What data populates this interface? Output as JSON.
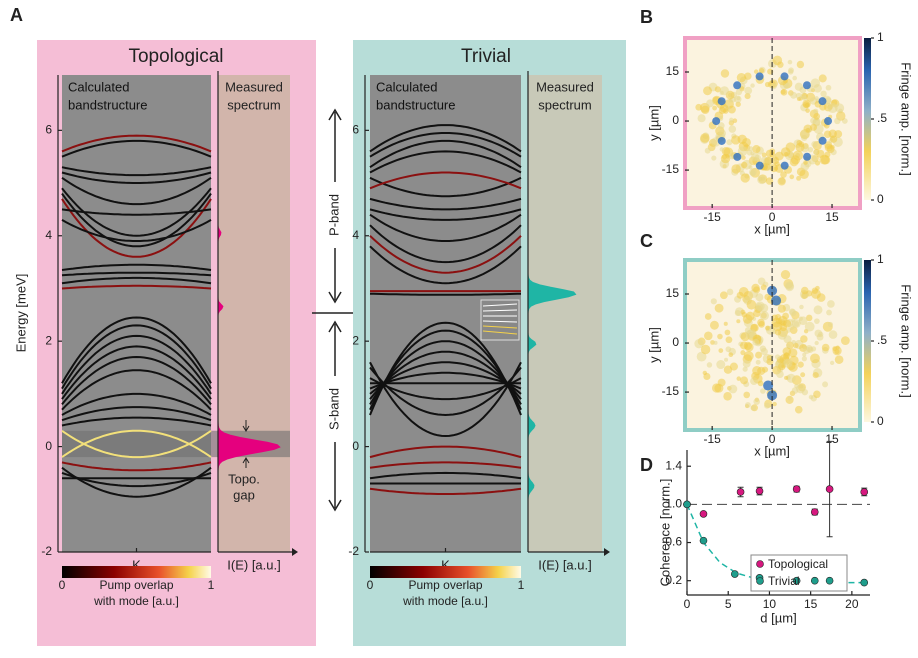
{
  "panel_labels": {
    "a": "A",
    "b": "B",
    "c": "C",
    "d": "D"
  },
  "energy_axis": {
    "label": "Energy [meV]",
    "ylim": [
      -2,
      7.05
    ],
    "yticks": [
      -2,
      0,
      2,
      4,
      6
    ]
  },
  "band_labels": {
    "p": "P-band",
    "s": "S-band"
  },
  "band_panels": [
    {
      "title": "Topological",
      "band_label": [
        "Calculated",
        "bandstructure"
      ],
      "spectrum_label": [
        "Measured",
        "spectrum"
      ],
      "x_label": "K",
      "spectrum_x_label": "I(E) [a.u.]",
      "colorbar_ticks": [
        0,
        1
      ],
      "colorbar_label": [
        "Pump overlap",
        "with mode [a.u.]"
      ],
      "annotation": [
        "Topo.",
        "gap"
      ]
    },
    {
      "title": "Trivial",
      "band_label": [
        "Calculated",
        "bandstructure"
      ],
      "spectrum_label": [
        "Measured",
        "spectrum"
      ],
      "x_label": "K",
      "spectrum_x_label": "I(E) [a.u.]",
      "colorbar_ticks": [
        0,
        1
      ],
      "colorbar_label": [
        "Pump overlap",
        "with mode [a.u.]"
      ]
    }
  ],
  "maps": [
    {
      "xlabel": "x [µm]",
      "ylabel": "y [µm]",
      "xlim": [
        -21.8,
        22
      ],
      "ylim": [
        -26.6,
        25.4
      ],
      "xticks": [
        -15,
        0,
        15
      ],
      "yticks": [
        -15,
        0,
        15
      ],
      "colorbar_ticks": [
        {
          "value": 0,
          "label": "0"
        },
        {
          "value": 0.5,
          "label": ".5"
        },
        {
          "value": 1,
          "label": "1"
        }
      ],
      "colorbar_label": "Fringe amp. [norm.]",
      "border": "#f0a0c4"
    },
    {
      "xlabel": "x [µm]",
      "ylabel": "y [µm]",
      "xlim": [
        -21.8,
        22
      ],
      "ylim": [
        -26.6,
        25.4
      ],
      "xticks": [
        -15,
        0,
        15
      ],
      "yticks": [
        -15,
        0,
        15
      ],
      "colorbar_ticks": [
        {
          "value": 0,
          "label": "0"
        },
        {
          "value": 0.5,
          "label": ".5"
        },
        {
          "value": 1,
          "label": "1"
        }
      ],
      "colorbar_label": "Fringe amp. [norm.]",
      "border": "#8fcdc5"
    }
  ],
  "chart_data": {
    "type": "scatter",
    "xlabel": "d [µm]",
    "ylabel": "Coherence [norm.]",
    "xlim": [
      0,
      22.2
    ],
    "ylim": [
      0.05,
      1.57
    ],
    "xticks": [
      0,
      5,
      10,
      15,
      20
    ],
    "yticks": [
      0.2,
      0.6,
      {
        "value": 1,
        "label": "1.0"
      },
      1.4
    ],
    "reference_line": 1,
    "legend": "lower-right",
    "series": [
      {
        "name": "Topological",
        "color": "#d6187f",
        "x": [
          0,
          2,
          6.5,
          8.8,
          13.3,
          15.5,
          17.3,
          21.5
        ],
        "values": [
          1.0,
          0.9,
          1.13,
          1.14,
          1.16,
          0.92,
          1.16,
          1.13
        ],
        "errors": [
          0.02,
          0.02,
          0.05,
          0.04,
          0.03,
          0.03,
          0.5,
          0.04
        ]
      },
      {
        "name": "Trivial",
        "color": "#1f9e8c",
        "x": [
          0,
          2,
          5.8,
          8.8,
          13.3,
          15.5,
          17.3,
          21.5
        ],
        "values": [
          1.0,
          0.62,
          0.27,
          0.23,
          0.2,
          0.2,
          0.2,
          0.18
        ]
      }
    ],
    "fit": {
      "color": "#1fb5a5",
      "x": [
        0,
        2,
        4,
        6,
        8,
        10,
        12,
        14,
        16,
        18,
        20,
        22
      ],
      "values": [
        1.0,
        0.6,
        0.39,
        0.28,
        0.23,
        0.2,
        0.19,
        0.185,
        0.182,
        0.18,
        0.18,
        0.18
      ]
    }
  }
}
